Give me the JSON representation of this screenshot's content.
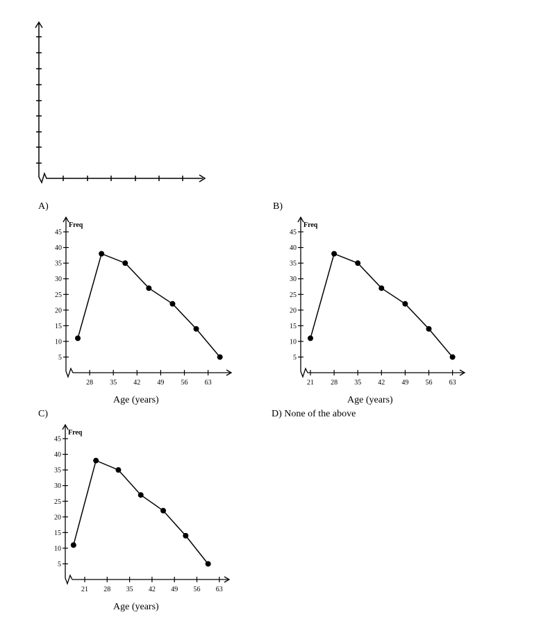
{
  "options": {
    "a": "A)",
    "b": "B)",
    "c": "C)",
    "d": "D) None of the above"
  },
  "freq_label": "Freq",
  "x_title": "Age (years)",
  "chart_data": [
    {
      "id": "blank",
      "type": "line",
      "title": "",
      "note": "empty axes with arrowheads and unlabeled ticks"
    },
    {
      "id": "A",
      "type": "line",
      "xlabel": "Age (years)",
      "ylabel": "Freq",
      "x_ticks": [
        "28",
        "35",
        "42",
        "49",
        "56",
        "63"
      ],
      "y_ticks": [
        "5",
        "10",
        "15",
        "20",
        "25",
        "30",
        "35",
        "40",
        "45"
      ],
      "ylim": [
        0,
        45
      ],
      "points": [
        {
          "x": 24.5,
          "y": 11
        },
        {
          "x": 31.5,
          "y": 38
        },
        {
          "x": 38.5,
          "y": 35
        },
        {
          "x": 45.5,
          "y": 27
        },
        {
          "x": 52.5,
          "y": 22
        },
        {
          "x": 59.5,
          "y": 14
        },
        {
          "x": 66.5,
          "y": 5
        }
      ]
    },
    {
      "id": "B",
      "type": "line",
      "xlabel": "Age (years)",
      "ylabel": "Freq",
      "x_ticks": [
        "21",
        "28",
        "35",
        "42",
        "49",
        "56",
        "63"
      ],
      "y_ticks": [
        "5",
        "10",
        "15",
        "20",
        "25",
        "30",
        "35",
        "40",
        "45"
      ],
      "ylim": [
        0,
        45
      ],
      "points": [
        {
          "x": 21,
          "y": 11
        },
        {
          "x": 28,
          "y": 38
        },
        {
          "x": 35,
          "y": 35
        },
        {
          "x": 42,
          "y": 27
        },
        {
          "x": 49,
          "y": 22
        },
        {
          "x": 56,
          "y": 14
        },
        {
          "x": 63,
          "y": 5
        }
      ]
    },
    {
      "id": "C",
      "type": "line",
      "xlabel": "Age (years)",
      "ylabel": "Freq",
      "x_ticks": [
        "21",
        "28",
        "35",
        "42",
        "49",
        "56",
        "63"
      ],
      "y_ticks": [
        "5",
        "10",
        "15",
        "20",
        "25",
        "30",
        "35",
        "40",
        "45"
      ],
      "ylim": [
        0,
        45
      ],
      "points": [
        {
          "x": 17.5,
          "y": 11
        },
        {
          "x": 24.5,
          "y": 38
        },
        {
          "x": 31.5,
          "y": 35
        },
        {
          "x": 38.5,
          "y": 27
        },
        {
          "x": 45.5,
          "y": 22
        },
        {
          "x": 52.5,
          "y": 14
        },
        {
          "x": 59.5,
          "y": 5
        }
      ]
    }
  ]
}
